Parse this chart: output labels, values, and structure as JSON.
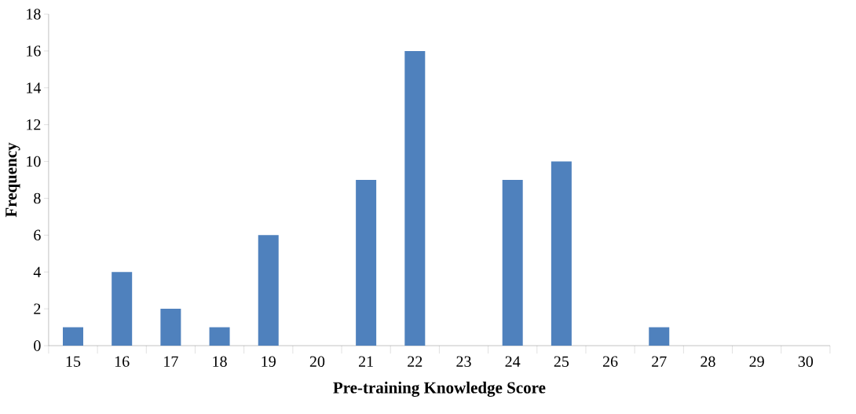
{
  "chart_data": {
    "type": "bar",
    "xlabel": "Pre-training Knowledge Score",
    "ylabel": "Frequency",
    "categories": [
      "15",
      "16",
      "17",
      "18",
      "19",
      "20",
      "21",
      "22",
      "23",
      "24",
      "25",
      "26",
      "27",
      "28",
      "29",
      "30"
    ],
    "values": [
      1,
      4,
      2,
      1,
      6,
      0,
      9,
      16,
      0,
      9,
      10,
      0,
      1,
      0,
      0,
      0
    ],
    "color": "#4f81bd",
    "ylim": [
      0,
      18
    ],
    "yticks": [
      0,
      2,
      4,
      6,
      8,
      10,
      12,
      14,
      16,
      18
    ],
    "grid": false
  }
}
